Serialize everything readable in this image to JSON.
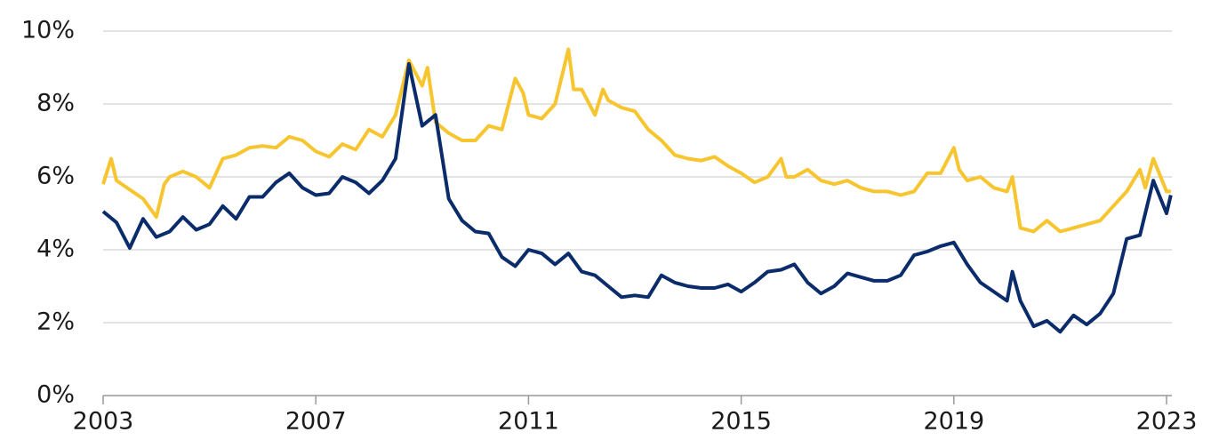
{
  "chart_data": {
    "type": "line",
    "xlim": [
      2003,
      2023.1
    ],
    "xticks": [
      2003,
      2007,
      2011,
      2015,
      2019,
      2023
    ],
    "ylim": [
      0,
      10
    ],
    "yticks": [
      {
        "value": 0,
        "label": "0%"
      },
      {
        "value": 2,
        "label": "2%"
      },
      {
        "value": 4,
        "label": "4%"
      },
      {
        "value": 6,
        "label": "6%"
      },
      {
        "value": 8,
        "label": "8%"
      },
      {
        "value": 10,
        "label": "10%"
      }
    ],
    "grid": true,
    "series": [
      {
        "color": "#f7c52f",
        "x": [
          2003,
          2003.15,
          2003.25,
          2003.5,
          2003.75,
          2004,
          2004.15,
          2004.25,
          2004.5,
          2004.75,
          2005,
          2005.25,
          2005.5,
          2005.75,
          2006,
          2006.25,
          2006.5,
          2006.75,
          2007,
          2007.25,
          2007.5,
          2007.75,
          2008,
          2008.25,
          2008.5,
          2008.75,
          2009,
          2009.1,
          2009.25,
          2009.5,
          2009.75,
          2010,
          2010.25,
          2010.5,
          2010.75,
          2010.9,
          2011,
          2011.25,
          2011.5,
          2011.75,
          2011.85,
          2012,
          2012.25,
          2012.4,
          2012.5,
          2012.75,
          2013,
          2013.25,
          2013.5,
          2013.75,
          2014,
          2014.25,
          2014.5,
          2014.75,
          2015,
          2015.25,
          2015.5,
          2015.75,
          2015.85,
          2016,
          2016.25,
          2016.5,
          2016.75,
          2017,
          2017.25,
          2017.5,
          2017.75,
          2018,
          2018.25,
          2018.5,
          2018.75,
          2019,
          2019.1,
          2019.25,
          2019.5,
          2019.75,
          2020,
          2020.1,
          2020.25,
          2020.5,
          2020.75,
          2021,
          2021.25,
          2021.5,
          2021.75,
          2022,
          2022.25,
          2022.5,
          2022.6,
          2022.75,
          2023,
          2023.08
        ],
        "values": [
          5.8,
          6.5,
          5.9,
          5.65,
          5.4,
          4.9,
          5.8,
          6.0,
          6.15,
          6.0,
          5.7,
          6.5,
          6.6,
          6.8,
          6.85,
          6.8,
          7.1,
          7.0,
          6.7,
          6.55,
          6.9,
          6.75,
          7.3,
          7.1,
          7.7,
          9.2,
          8.5,
          9.0,
          7.5,
          7.2,
          7.0,
          7.0,
          7.4,
          7.3,
          8.7,
          8.3,
          7.7,
          7.6,
          8.0,
          9.5,
          8.4,
          8.4,
          7.7,
          8.4,
          8.1,
          7.9,
          7.8,
          7.3,
          7.0,
          6.6,
          6.5,
          6.45,
          6.55,
          6.3,
          6.1,
          5.85,
          6.0,
          6.5,
          6.0,
          6.0,
          6.2,
          5.9,
          5.8,
          5.9,
          5.7,
          5.6,
          5.6,
          5.5,
          5.6,
          6.1,
          6.1,
          6.8,
          6.2,
          5.9,
          6.0,
          5.7,
          5.6,
          6.0,
          4.6,
          4.5,
          4.8,
          4.5,
          4.6,
          4.7,
          4.8,
          5.2,
          5.6,
          6.2,
          5.7,
          6.5,
          5.6,
          5.6
        ]
      },
      {
        "color": "#0b2c6b",
        "x": [
          2003,
          2003.25,
          2003.5,
          2003.75,
          2004,
          2004.25,
          2004.5,
          2004.75,
          2005,
          2005.25,
          2005.5,
          2005.75,
          2006,
          2006.25,
          2006.5,
          2006.75,
          2007,
          2007.25,
          2007.5,
          2007.75,
          2008,
          2008.25,
          2008.5,
          2008.75,
          2009,
          2009.25,
          2009.5,
          2009.75,
          2010,
          2010.25,
          2010.5,
          2010.75,
          2011,
          2011.25,
          2011.5,
          2011.75,
          2012,
          2012.25,
          2012.5,
          2012.75,
          2013,
          2013.25,
          2013.5,
          2013.75,
          2014,
          2014.25,
          2014.5,
          2014.75,
          2015,
          2015.25,
          2015.5,
          2015.75,
          2016,
          2016.25,
          2016.5,
          2016.75,
          2017,
          2017.25,
          2017.5,
          2017.75,
          2018,
          2018.25,
          2018.5,
          2018.75,
          2019,
          2019.25,
          2019.5,
          2019.75,
          2020,
          2020.1,
          2020.25,
          2020.5,
          2020.75,
          2021,
          2021.25,
          2021.5,
          2021.75,
          2022,
          2022.25,
          2022.5,
          2022.75,
          2023,
          2023.08
        ],
        "values": [
          5.05,
          4.75,
          4.05,
          4.85,
          4.35,
          4.5,
          4.9,
          4.55,
          4.7,
          5.2,
          4.85,
          5.45,
          5.45,
          5.85,
          6.1,
          5.7,
          5.5,
          5.55,
          6.0,
          5.85,
          5.55,
          5.9,
          6.5,
          9.1,
          7.4,
          7.7,
          5.4,
          4.8,
          4.5,
          4.45,
          3.8,
          3.55,
          4.0,
          3.9,
          3.6,
          3.9,
          3.4,
          3.3,
          3.0,
          2.7,
          2.75,
          2.7,
          3.3,
          3.1,
          3.0,
          2.95,
          2.95,
          3.05,
          2.85,
          3.1,
          3.4,
          3.45,
          3.6,
          3.1,
          2.8,
          3.0,
          3.35,
          3.25,
          3.15,
          3.15,
          3.3,
          3.85,
          3.95,
          4.1,
          4.2,
          3.6,
          3.1,
          2.85,
          2.6,
          3.4,
          2.6,
          1.9,
          2.05,
          1.75,
          2.2,
          1.95,
          2.25,
          2.8,
          4.3,
          4.4,
          5.9,
          5.0,
          5.5
        ]
      }
    ]
  }
}
